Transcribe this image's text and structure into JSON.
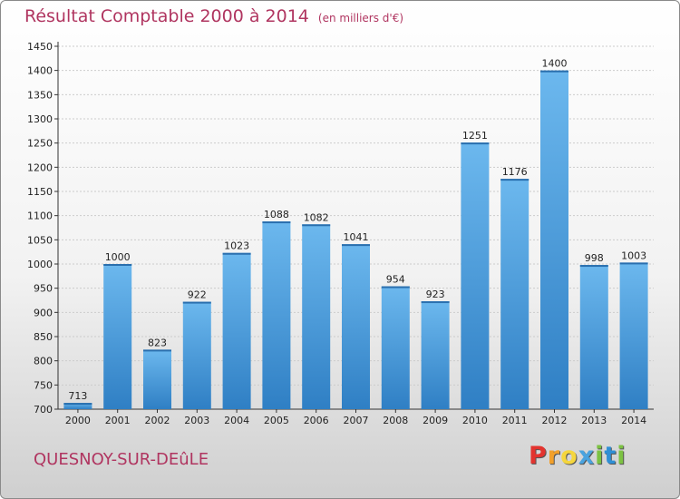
{
  "title": "Résultat Comptable 2000 à 2014",
  "subtitle": "(en milliers d'€)",
  "place": "QUESNOY-SUR-DEûLE",
  "logo": {
    "letters": [
      "P",
      "r",
      "o",
      "x",
      "i",
      "t",
      "i"
    ]
  },
  "colors": {
    "title": "#b03560",
    "bar_top": "#6cb8ee",
    "bar_bottom": "#2f7fc4",
    "grid": "#cccccc"
  },
  "chart_data": {
    "type": "bar",
    "categories": [
      "2000",
      "2001",
      "2002",
      "2003",
      "2004",
      "2005",
      "2006",
      "2007",
      "2008",
      "2009",
      "2010",
      "2011",
      "2012",
      "2013",
      "2014"
    ],
    "values": [
      713,
      1000,
      823,
      922,
      1023,
      1088,
      1082,
      1041,
      954,
      923,
      1251,
      1176,
      1400,
      998,
      1003
    ],
    "ylim": [
      700,
      1450
    ],
    "yticks": [
      700,
      750,
      800,
      850,
      900,
      950,
      1000,
      1050,
      1100,
      1150,
      1200,
      1250,
      1300,
      1350,
      1400,
      1450
    ],
    "grid": true,
    "title": "Résultat Comptable 2000 à 2014",
    "ylabel": "",
    "xlabel": ""
  }
}
